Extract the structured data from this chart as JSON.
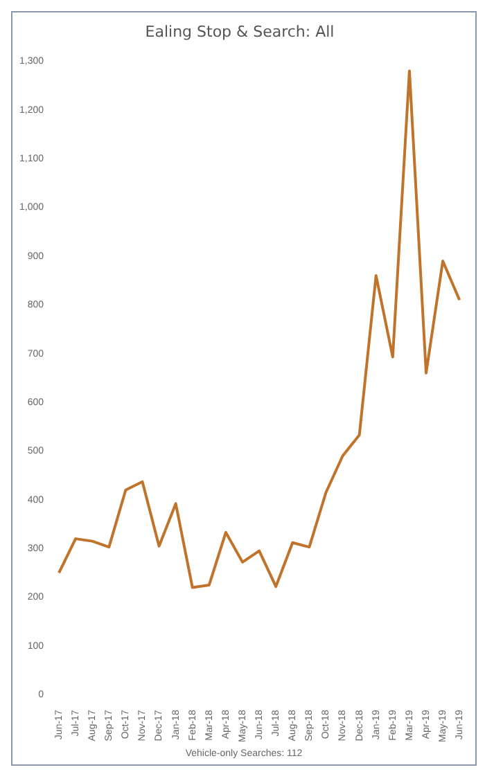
{
  "chart_data": {
    "type": "line",
    "title": "Ealing Stop & Search: All",
    "categories": [
      "Jun-17",
      "Jul-17",
      "Aug-17",
      "Sep-17",
      "Oct-17",
      "Nov-17",
      "Dec-17",
      "Jan-18",
      "Feb-18",
      "Mar-18",
      "Apr-18",
      "May-18",
      "Jun-18",
      "Jul-18",
      "Aug-18",
      "Sep-18",
      "Oct-18",
      "Nov-18",
      "Dec-18",
      "Jan-19",
      "Feb-19",
      "Mar-19",
      "Apr-19",
      "May-19",
      "Jun-19"
    ],
    "series": [
      {
        "color": "#c0732a",
        "values": [
          250,
          320,
          315,
          303,
          420,
          437,
          305,
          392,
          220,
          225,
          333,
          272,
          295,
          222,
          312,
          303,
          415,
          490,
          533,
          860,
          693,
          1280,
          660,
          890,
          810
        ]
      }
    ],
    "ylim": [
      0,
      1300
    ],
    "yticks": [
      0,
      100,
      200,
      300,
      400,
      500,
      600,
      700,
      800,
      900,
      {
        "value": 1000,
        "label": "1,000"
      },
      {
        "value": 1100,
        "label": "1,100"
      },
      {
        "value": 1200,
        "label": "1,200"
      },
      {
        "value": 1300,
        "label": "1,300"
      }
    ],
    "grid": false,
    "legend": false,
    "marker": "none",
    "line_style": "solid",
    "annotations": [
      "Vehicle-only Searches: 112"
    ]
  }
}
